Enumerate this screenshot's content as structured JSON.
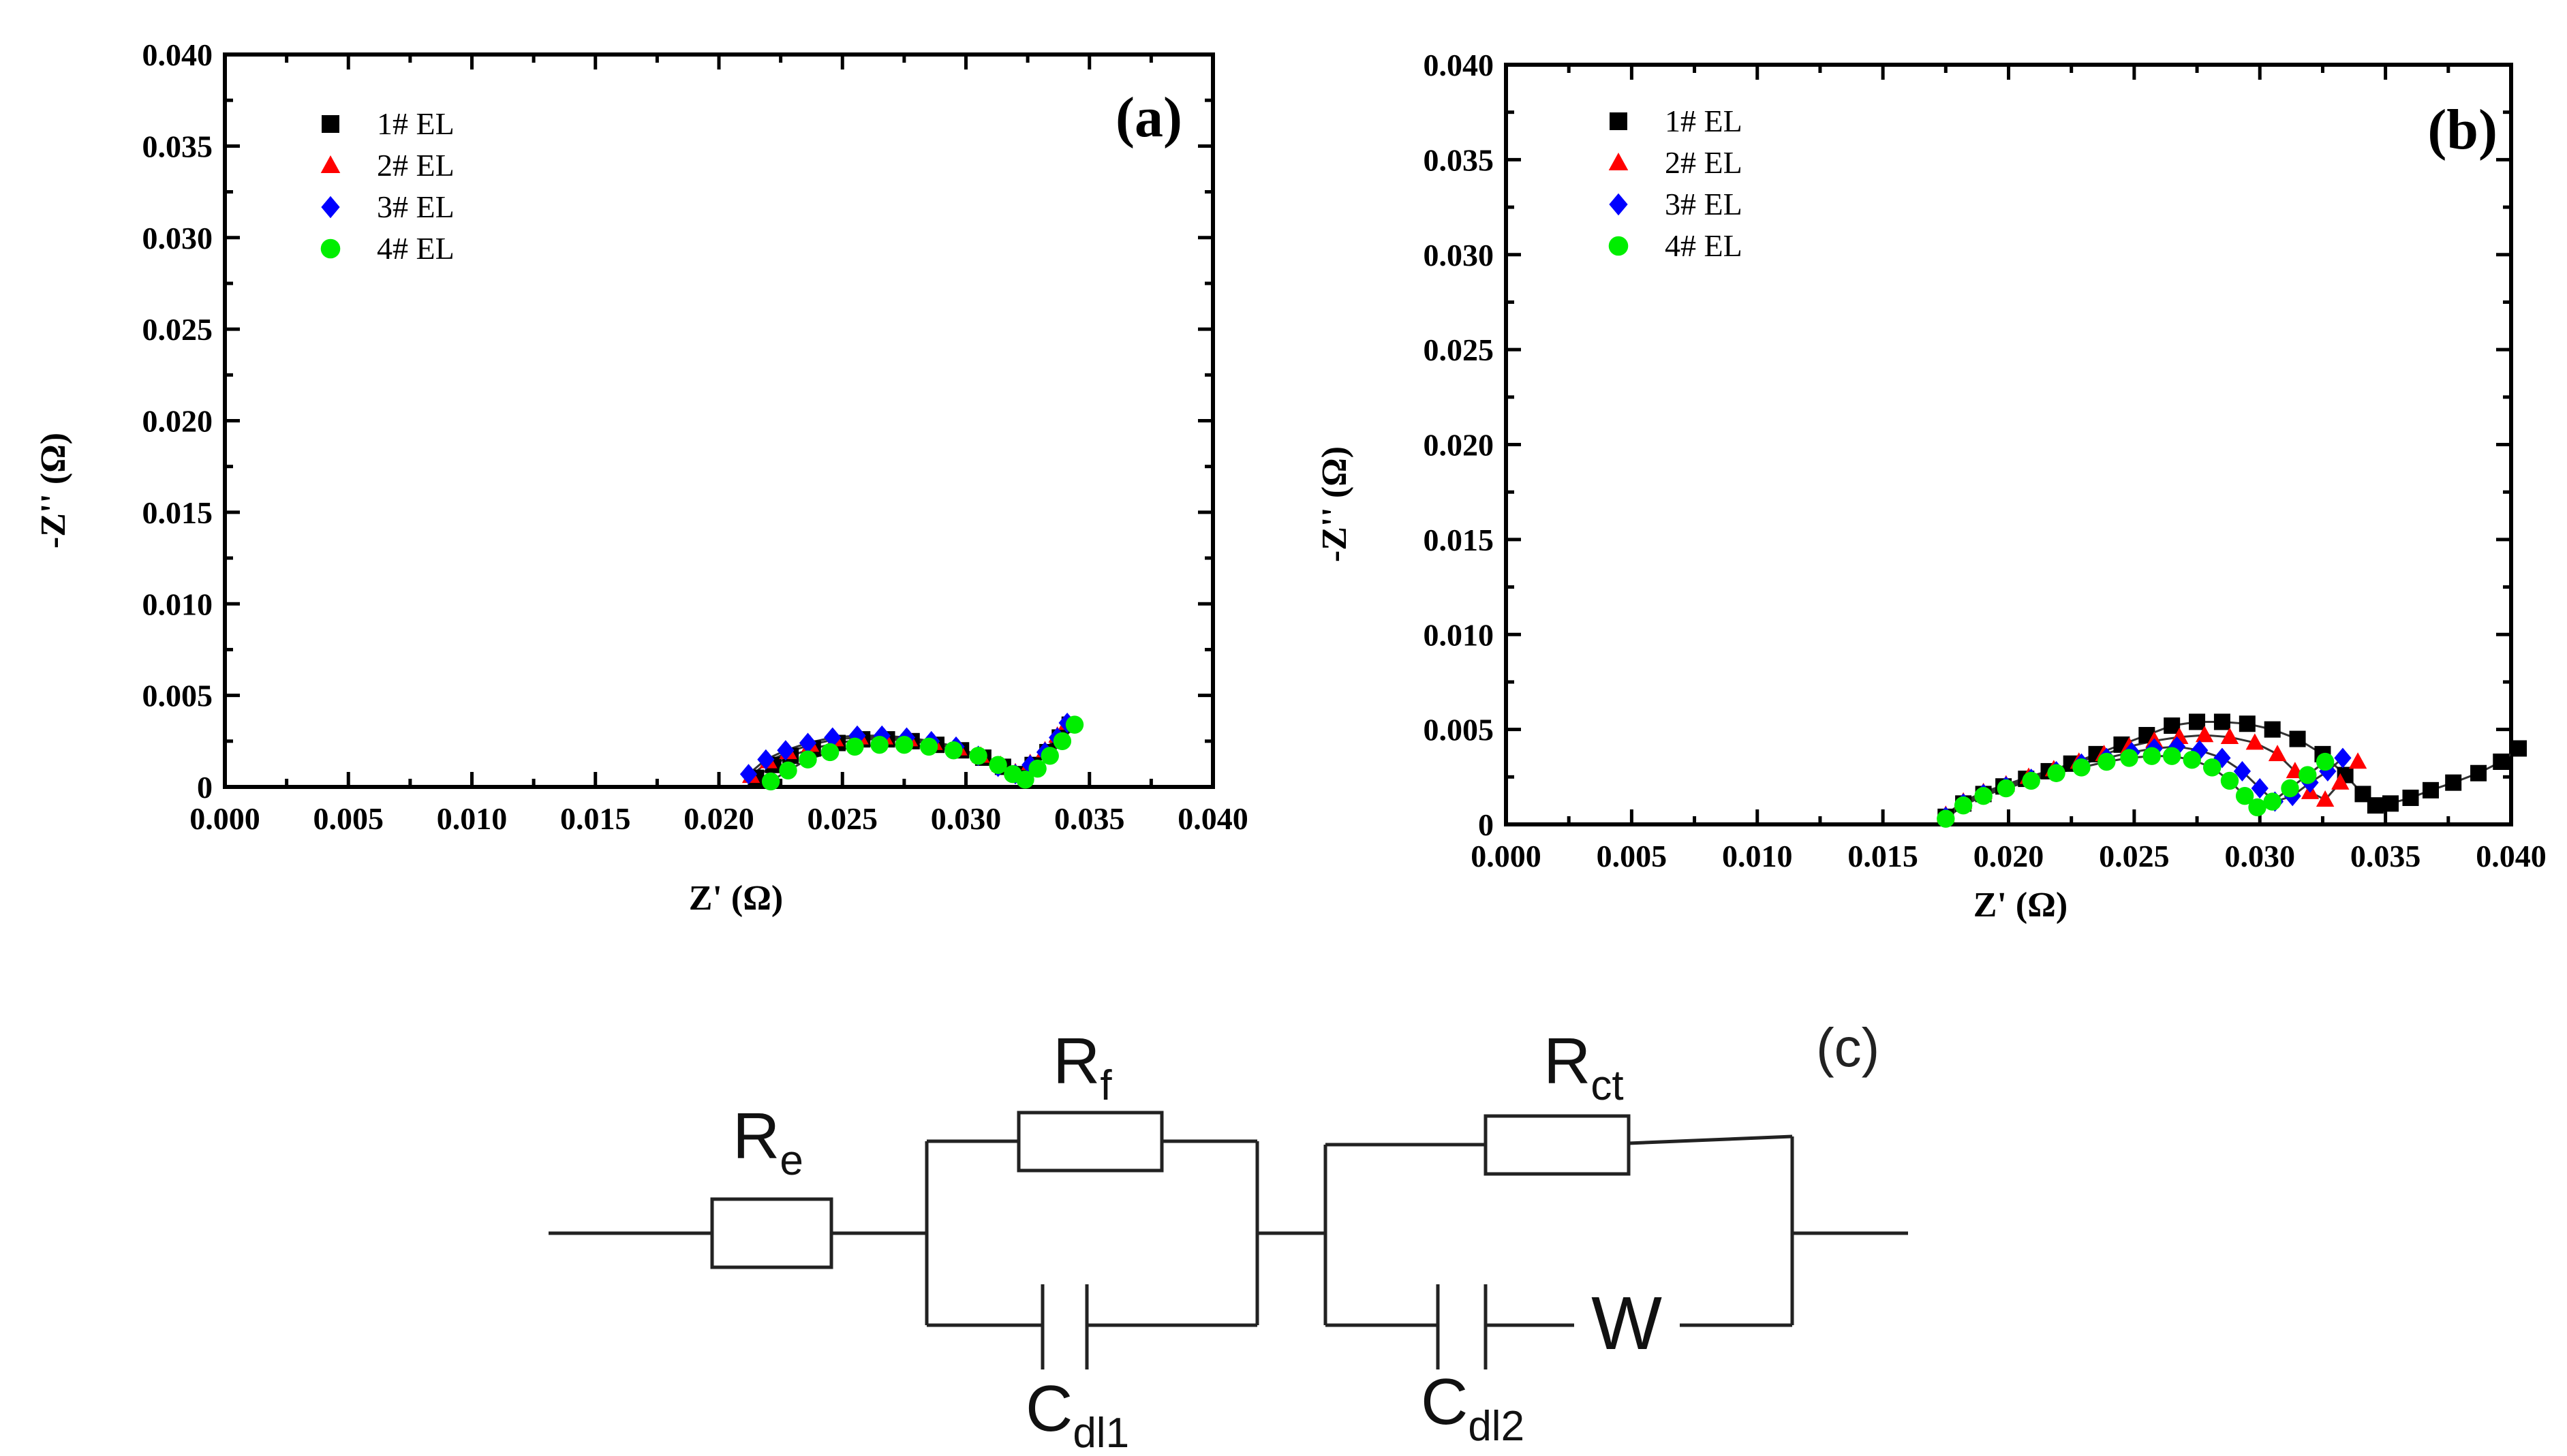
{
  "chart_data": [
    {
      "type": "scatter",
      "panel_label": "(a)",
      "xlabel": "Z' (Ω)",
      "ylabel": "-Z'' (Ω)",
      "xlim": [
        0.0,
        0.04
      ],
      "ylim": [
        0.0,
        0.04
      ],
      "xticks": [
        "0.000",
        "0.005",
        "0.010",
        "0.015",
        "0.020",
        "0.025",
        "0.030",
        "0.035",
        "0.040"
      ],
      "yticks": [
        "0",
        "0.005",
        "0.010",
        "0.015",
        "0.020",
        "0.025",
        "0.030",
        "0.035",
        "0.040"
      ],
      "legend_position": "top-left",
      "series": [
        {
          "name": "1# EL",
          "marker": "square",
          "color": "#000000",
          "x": [
            0.0215,
            0.0222,
            0.0229,
            0.0238,
            0.0248,
            0.0258,
            0.0268,
            0.0278,
            0.0288,
            0.0298,
            0.0307,
            0.0315,
            0.0321,
            0.0327,
            0.0333,
            0.0338,
            0.0342
          ],
          "y": [
            0.0005,
            0.0012,
            0.0017,
            0.0021,
            0.0024,
            0.0026,
            0.0026,
            0.0025,
            0.0023,
            0.002,
            0.0016,
            0.0011,
            0.0007,
            0.0012,
            0.0019,
            0.0027,
            0.0034
          ]
        },
        {
          "name": "2# EL",
          "marker": "triangle",
          "color": "#ff0000",
          "x": [
            0.0213,
            0.022,
            0.0228,
            0.0237,
            0.0247,
            0.0257,
            0.0267,
            0.0277,
            0.0287,
            0.0297,
            0.0306,
            0.0314,
            0.032,
            0.0326,
            0.0332,
            0.0337,
            0.0341
          ],
          "y": [
            0.0006,
            0.0014,
            0.0019,
            0.0023,
            0.0026,
            0.0027,
            0.0027,
            0.0026,
            0.0024,
            0.0021,
            0.0017,
            0.0012,
            0.0008,
            0.0013,
            0.002,
            0.0028,
            0.0035
          ]
        },
        {
          "name": "3# EL",
          "marker": "diamond",
          "color": "#0000ff",
          "x": [
            0.0212,
            0.0219,
            0.0227,
            0.0236,
            0.0246,
            0.0256,
            0.0266,
            0.0276,
            0.0286,
            0.0296,
            0.0305,
            0.0313,
            0.032,
            0.0326,
            0.0332,
            0.0337,
            0.0341
          ],
          "y": [
            0.0007,
            0.0015,
            0.002,
            0.0024,
            0.0027,
            0.0028,
            0.0028,
            0.0027,
            0.0025,
            0.0022,
            0.0017,
            0.0011,
            0.0007,
            0.0012,
            0.0019,
            0.0027,
            0.0035
          ]
        },
        {
          "name": "4# EL",
          "marker": "circle",
          "color": "#00ee00",
          "x": [
            0.0221,
            0.0228,
            0.0236,
            0.0245,
            0.0255,
            0.0265,
            0.0275,
            0.0285,
            0.0295,
            0.0305,
            0.0313,
            0.0319,
            0.0324,
            0.0329,
            0.0334,
            0.0339,
            0.0344
          ],
          "y": [
            0.0003,
            0.0009,
            0.0015,
            0.0019,
            0.0022,
            0.0023,
            0.0023,
            0.0022,
            0.002,
            0.0017,
            0.0012,
            0.0007,
            0.0004,
            0.001,
            0.0017,
            0.0025,
            0.0034
          ]
        }
      ]
    },
    {
      "type": "scatter",
      "panel_label": "(b)",
      "xlabel": "Z' (Ω)",
      "ylabel": "-Z'' (Ω)",
      "xlim": [
        0.0,
        0.04
      ],
      "ylim": [
        0.0,
        0.04
      ],
      "xticks": [
        "0.000",
        "0.005",
        "0.010",
        "0.015",
        "0.020",
        "0.025",
        "0.030",
        "0.035",
        "0.040"
      ],
      "yticks": [
        "0",
        "0.005",
        "0.010",
        "0.015",
        "0.020",
        "0.025",
        "0.030",
        "0.035",
        "0.040"
      ],
      "legend_position": "top-left",
      "series": [
        {
          "name": "1# EL",
          "marker": "square",
          "color": "#000000",
          "x": [
            0.0175,
            0.0182,
            0.019,
            0.0198,
            0.0207,
            0.0216,
            0.0225,
            0.0235,
            0.0245,
            0.0255,
            0.0265,
            0.0275,
            0.0285,
            0.0295,
            0.0305,
            0.0315,
            0.0325,
            0.0334,
            0.0341,
            0.0346,
            0.0352,
            0.036,
            0.0368,
            0.0377,
            0.0387,
            0.0396,
            0.0403
          ],
          "y": [
            0.0004,
            0.0011,
            0.0016,
            0.002,
            0.0024,
            0.0028,
            0.0032,
            0.0037,
            0.0042,
            0.0047,
            0.0052,
            0.0054,
            0.0054,
            0.0053,
            0.005,
            0.0045,
            0.0037,
            0.0026,
            0.0016,
            0.001,
            0.0011,
            0.0014,
            0.0018,
            0.0022,
            0.0027,
            0.0033,
            0.004
          ]
        },
        {
          "name": "2# EL",
          "marker": "triangle",
          "color": "#ff0000",
          "x": [
            0.0175,
            0.0182,
            0.019,
            0.0199,
            0.0208,
            0.0218,
            0.0228,
            0.0238,
            0.0248,
            0.0258,
            0.0268,
            0.0278,
            0.0288,
            0.0298,
            0.0307,
            0.0314,
            0.032,
            0.0326,
            0.0332,
            0.0339
          ],
          "y": [
            0.0005,
            0.0012,
            0.0017,
            0.0021,
            0.0025,
            0.0029,
            0.0033,
            0.0037,
            0.0041,
            0.0044,
            0.0046,
            0.0047,
            0.0046,
            0.0043,
            0.0037,
            0.0028,
            0.0017,
            0.0013,
            0.0022,
            0.0033
          ]
        },
        {
          "name": "3# EL",
          "marker": "diamond",
          "color": "#0000ff",
          "x": [
            0.0175,
            0.0182,
            0.019,
            0.0199,
            0.0209,
            0.0219,
            0.0229,
            0.0239,
            0.0249,
            0.0258,
            0.0267,
            0.0276,
            0.0285,
            0.0293,
            0.03,
            0.0306,
            0.0313,
            0.032,
            0.0327,
            0.0333
          ],
          "y": [
            0.0004,
            0.0011,
            0.0016,
            0.002,
            0.0024,
            0.0028,
            0.0032,
            0.0035,
            0.0038,
            0.004,
            0.0041,
            0.0039,
            0.0035,
            0.0028,
            0.0019,
            0.0012,
            0.0015,
            0.0022,
            0.0028,
            0.0035
          ]
        },
        {
          "name": "4# EL",
          "marker": "circle",
          "color": "#00ee00",
          "x": [
            0.0175,
            0.0182,
            0.019,
            0.0199,
            0.0209,
            0.0219,
            0.0229,
            0.0239,
            0.0248,
            0.0257,
            0.0265,
            0.0273,
            0.0281,
            0.0288,
            0.0294,
            0.0299,
            0.0305,
            0.0312,
            0.0319,
            0.0326
          ],
          "y": [
            0.0003,
            0.001,
            0.0015,
            0.0019,
            0.0023,
            0.0027,
            0.003,
            0.0033,
            0.0035,
            0.0036,
            0.0036,
            0.0034,
            0.003,
            0.0023,
            0.0015,
            0.0009,
            0.0012,
            0.0019,
            0.0026,
            0.0033
          ]
        }
      ]
    }
  ],
  "circuit": {
    "panel_label": "(c)",
    "labels": {
      "re_main": "R",
      "re_sub": "e",
      "rf_main": "R",
      "rf_sub": "f",
      "rct_main": "R",
      "rct_sub": "ct",
      "cdl1_main": "C",
      "cdl1_sub": "dl1",
      "cdl2_main": "C",
      "cdl2_sub": "dl2",
      "warburg": "W"
    }
  }
}
